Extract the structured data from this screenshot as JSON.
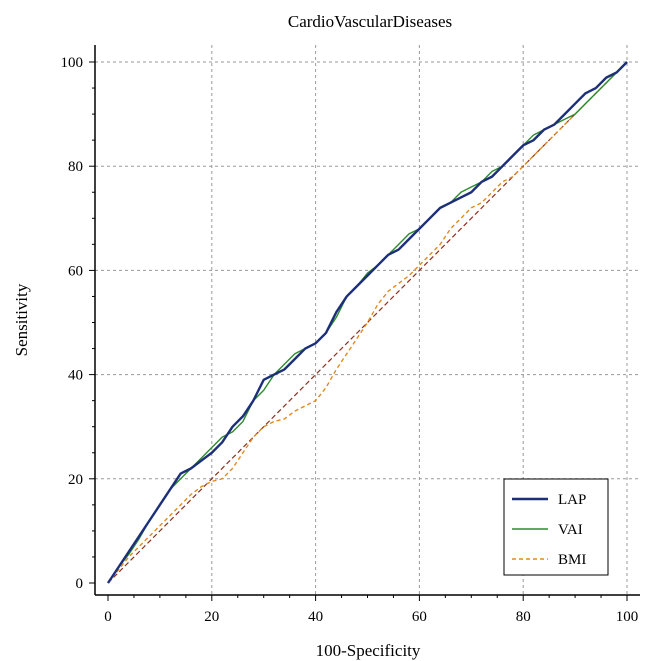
{
  "chart_data": {
    "type": "line",
    "title": "CardioVascularDiseases",
    "xlabel": "100-Specificity",
    "ylabel": "Sensitivity",
    "xlim": [
      0,
      100
    ],
    "ylim": [
      0,
      100
    ],
    "xticks": [
      0,
      20,
      40,
      60,
      80,
      100
    ],
    "yticks": [
      0,
      20,
      40,
      60,
      80,
      100
    ],
    "grid": true,
    "legend_position": "bottom-right",
    "series": [
      {
        "name": "LAP",
        "color": "#1c2f78",
        "style": "solid",
        "x": [
          0,
          2,
          4,
          6,
          8,
          10,
          12,
          14,
          16,
          18,
          20,
          22,
          24,
          26,
          28,
          30,
          32,
          34,
          36,
          38,
          40,
          42,
          44,
          46,
          48,
          50,
          52,
          54,
          56,
          58,
          60,
          62,
          64,
          66,
          68,
          70,
          72,
          74,
          76,
          78,
          80,
          82,
          84,
          86,
          88,
          90,
          92,
          94,
          96,
          98,
          100
        ],
        "y": [
          0,
          3,
          6,
          9,
          12,
          15,
          18,
          21,
          22,
          23.5,
          25,
          27,
          30,
          32,
          35,
          39,
          40,
          41,
          43,
          45,
          46,
          48,
          52,
          55,
          57,
          59,
          61,
          63,
          64,
          66,
          68,
          70,
          72,
          73,
          74,
          75,
          77,
          78,
          80,
          82,
          84,
          85,
          87,
          88,
          90,
          92,
          94,
          95,
          97,
          98,
          100
        ]
      },
      {
        "name": "VAI",
        "color": "#2e8b2e",
        "style": "solid",
        "x": [
          0,
          2,
          4,
          6,
          8,
          10,
          12,
          14,
          16,
          18,
          20,
          22,
          24,
          26,
          28,
          30,
          32,
          34,
          36,
          38,
          40,
          42,
          44,
          46,
          48,
          50,
          52,
          54,
          56,
          58,
          60,
          62,
          64,
          66,
          68,
          70,
          72,
          74,
          76,
          78,
          80,
          82,
          84,
          86,
          88,
          90,
          92,
          94,
          96,
          98,
          100
        ],
        "y": [
          0,
          3,
          5.5,
          8.5,
          12,
          15,
          18,
          20,
          22,
          24,
          26,
          28,
          29,
          31,
          35,
          37,
          40,
          42,
          44,
          45,
          46,
          48,
          51,
          55,
          57,
          59.5,
          61,
          63,
          65,
          67,
          68,
          70,
          72,
          73,
          75,
          76,
          77,
          79,
          80,
          82,
          84,
          86,
          87,
          88,
          89,
          90,
          92,
          94,
          96,
          98,
          100
        ]
      },
      {
        "name": "BMI",
        "color": "#e08a1e",
        "style": "dashed",
        "x": [
          0,
          2,
          4,
          6,
          8,
          10,
          12,
          14,
          16,
          18,
          20,
          22,
          24,
          26,
          28,
          30,
          32,
          34,
          36,
          38,
          40,
          42,
          44,
          46,
          48,
          50,
          52,
          54,
          56,
          58,
          60,
          62,
          64,
          66,
          68,
          70,
          72,
          74,
          76,
          78,
          80,
          82,
          84,
          86,
          88,
          90,
          92,
          94,
          96,
          98,
          100
        ],
        "y": [
          0,
          2.5,
          5,
          7,
          9,
          11,
          13,
          15,
          17,
          18.5,
          19.5,
          20,
          22,
          25,
          28,
          30,
          31,
          31.5,
          33,
          34,
          35,
          37.5,
          41,
          44,
          47,
          50,
          53.5,
          56,
          57.5,
          59,
          61,
          63,
          65,
          68,
          70,
          72,
          73,
          75,
          77,
          78,
          80,
          82,
          84,
          86,
          88,
          90,
          92,
          94,
          96,
          98,
          100
        ]
      }
    ],
    "reference_line": {
      "color": "#8b2f1c",
      "style": "dashed",
      "x": [
        0,
        100
      ],
      "y": [
        0,
        100
      ]
    }
  }
}
